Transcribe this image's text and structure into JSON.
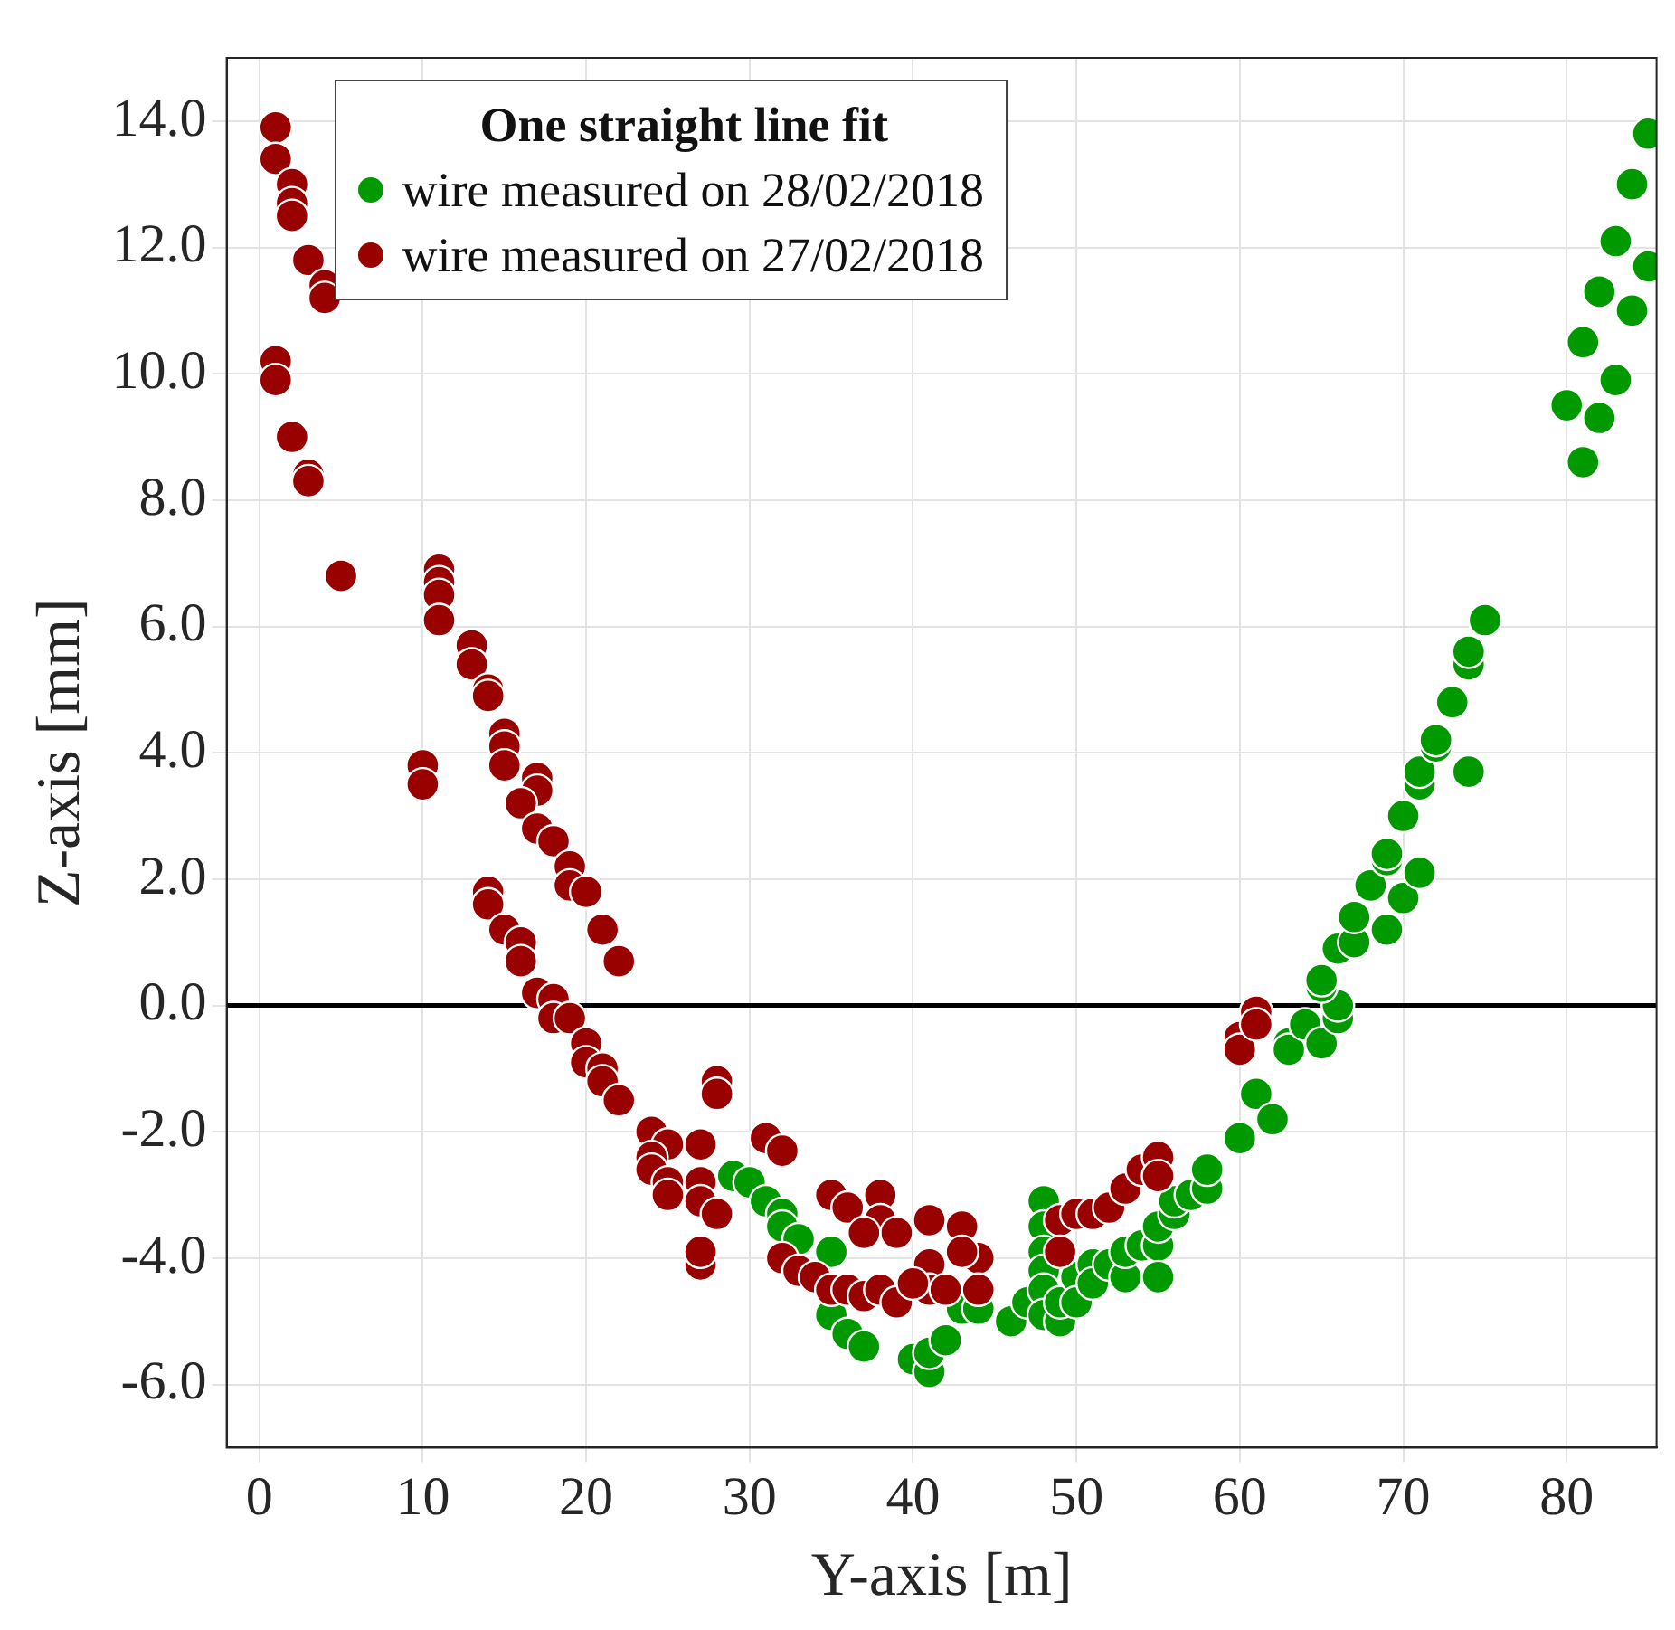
{
  "chart_data": {
    "type": "scatter",
    "xlabel": "Y-axis [m]",
    "ylabel": "Z-axis [mm]",
    "legend_title": "One straight line fit",
    "xlim": [
      -2,
      85.5
    ],
    "ylim": [
      -7,
      15
    ],
    "xticks": [
      0,
      10,
      20,
      30,
      40,
      50,
      60,
      70,
      80
    ],
    "yticks": [
      {
        "value": -6,
        "label": "-6.0"
      },
      {
        "value": -4,
        "label": "-4.0"
      },
      {
        "value": -2,
        "label": "-2.0"
      },
      {
        "value": 0,
        "label": "0.0"
      },
      {
        "value": 2,
        "label": "2.0"
      },
      {
        "value": 4,
        "label": "4.0"
      },
      {
        "value": 6,
        "label": "6.0"
      },
      {
        "value": 8,
        "label": "8.0"
      },
      {
        "value": 10,
        "label": "10.0"
      },
      {
        "value": 12,
        "label": "12.0"
      },
      {
        "value": 14,
        "label": "14.0"
      }
    ],
    "grid": true,
    "legend": "top left",
    "marker": "circle",
    "ref_lines": [
      {
        "axis": "y",
        "value": 0,
        "color": "#000000"
      }
    ],
    "series": [
      {
        "name": "wire measured on 28/02/2018",
        "color": "#009900",
        "x": [
          29,
          30,
          31,
          32,
          32,
          33,
          35,
          35,
          36,
          37,
          40,
          41,
          41,
          42,
          43,
          44,
          46,
          47,
          48,
          48,
          48,
          48,
          48,
          48,
          49,
          49,
          50,
          50,
          51,
          51,
          52,
          53,
          53,
          54,
          55,
          55,
          55,
          56,
          56,
          57,
          58,
          58,
          60,
          61,
          62,
          63,
          63,
          64,
          65,
          66,
          66,
          65,
          65,
          66,
          67,
          67,
          68,
          69,
          69,
          69,
          70,
          70,
          71,
          71,
          71,
          72,
          72,
          73,
          74,
          74,
          74,
          75,
          80,
          81,
          81,
          82,
          82,
          83,
          83,
          84,
          84,
          85,
          85
        ],
        "values": [
          -2.7,
          -2.8,
          -3.1,
          -3.3,
          -3.5,
          -3.7,
          -3.9,
          -4.9,
          -5.2,
          -5.4,
          -5.6,
          -5.8,
          -5.5,
          -5.3,
          -4.8,
          -4.8,
          -5.0,
          -4.7,
          -3.1,
          -3.5,
          -3.9,
          -4.2,
          -4.5,
          -4.9,
          -5.0,
          -4.7,
          -4.3,
          -4.7,
          -4.1,
          -4.4,
          -4.1,
          -4.3,
          -3.9,
          -3.8,
          -3.8,
          -4.3,
          -3.5,
          -3.3,
          -3.1,
          -3.0,
          -2.9,
          -2.6,
          -2.1,
          -1.4,
          -1.8,
          -0.6,
          -0.7,
          -0.3,
          -0.6,
          -0.2,
          0.0,
          0.3,
          0.4,
          0.9,
          1.0,
          1.4,
          1.9,
          1.2,
          2.3,
          2.4,
          1.7,
          3.0,
          2.1,
          3.5,
          3.7,
          4.1,
          4.2,
          4.8,
          3.7,
          5.4,
          5.6,
          6.1,
          9.5,
          8.6,
          10.5,
          9.3,
          11.3,
          9.9,
          12.1,
          11.0,
          13.0,
          11.7,
          13.8
        ]
      },
      {
        "name": "wire measured on 27/02/2018",
        "color": "#990000",
        "x": [
          1,
          1,
          2,
          2,
          2,
          3,
          4,
          4,
          1,
          1,
          2,
          3,
          3,
          5,
          11,
          11,
          11,
          11,
          13,
          13,
          14,
          14,
          15,
          15,
          10,
          10,
          15,
          17,
          17,
          16,
          17,
          18,
          19,
          19,
          20,
          21,
          22,
          14,
          14,
          15,
          16,
          16,
          17,
          18,
          18,
          19,
          20,
          20,
          21,
          21,
          22,
          28,
          28,
          24,
          25,
          27,
          24,
          24,
          25,
          25,
          27,
          27,
          28,
          27,
          27,
          31,
          32,
          35,
          36,
          38,
          38,
          39,
          37,
          41,
          41,
          32,
          33,
          34,
          35,
          36,
          37,
          38,
          39,
          43,
          44,
          43,
          41,
          42,
          40,
          44,
          49,
          50,
          51,
          52,
          53,
          54,
          55,
          55,
          49,
          60,
          60,
          61,
          61
        ],
        "values": [
          13.9,
          13.4,
          13.0,
          12.7,
          12.5,
          11.8,
          11.4,
          11.2,
          10.2,
          9.9,
          9.0,
          8.4,
          8.3,
          6.8,
          6.9,
          6.7,
          6.5,
          6.1,
          5.7,
          5.4,
          5.0,
          4.9,
          4.3,
          4.1,
          3.8,
          3.5,
          3.8,
          3.6,
          3.4,
          3.2,
          2.8,
          2.6,
          2.2,
          1.9,
          1.8,
          1.2,
          0.7,
          1.8,
          1.6,
          1.2,
          1.0,
          0.7,
          0.2,
          0.1,
          -0.2,
          -0.2,
          -0.6,
          -0.9,
          -1.0,
          -1.2,
          -1.5,
          -1.2,
          -1.4,
          -2.0,
          -2.2,
          -2.2,
          -2.4,
          -2.6,
          -2.8,
          -3.0,
          -2.8,
          -3.1,
          -3.3,
          -4.1,
          -3.9,
          -2.1,
          -2.3,
          -3.0,
          -3.2,
          -3.0,
          -3.4,
          -3.6,
          -3.6,
          -3.4,
          -4.1,
          -4.0,
          -4.2,
          -4.3,
          -4.5,
          -4.5,
          -4.6,
          -4.5,
          -4.7,
          -3.5,
          -4.0,
          -3.9,
          -4.5,
          -4.5,
          -4.4,
          -4.5,
          -3.4,
          -3.3,
          -3.3,
          -3.2,
          -2.9,
          -2.6,
          -2.4,
          -2.7,
          -3.9,
          -0.5,
          -0.7,
          -0.1,
          -0.3
        ]
      }
    ]
  }
}
